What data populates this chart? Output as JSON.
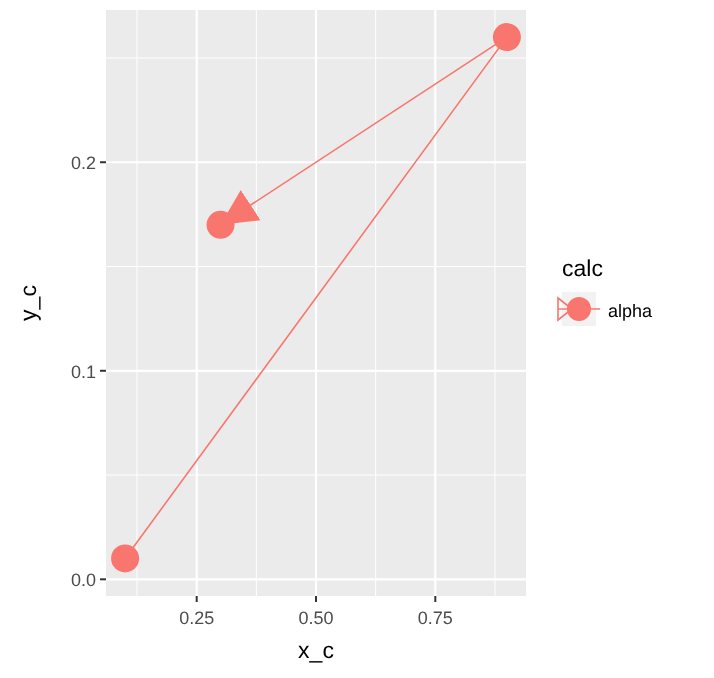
{
  "chart_data": {
    "type": "line",
    "xlabel": "x_c",
    "ylabel": "y_c",
    "legend_title": "calc",
    "legend": "right",
    "marker": "circle",
    "grid": true,
    "xlim": [
      0.06,
      0.94
    ],
    "ylim": [
      -0.008,
      0.273
    ],
    "xticks": [
      {
        "value": 0.125,
        "label": null
      },
      0.25,
      {
        "value": 0.375,
        "label": null
      },
      {
        "value": 0.5,
        "label": "0.50"
      },
      {
        "value": 0.625,
        "label": null
      },
      0.75,
      {
        "value": 0.875,
        "label": null
      }
    ],
    "yticks": [
      {
        "value": 0,
        "label": "0.0"
      },
      {
        "value": 0.05,
        "label": null
      },
      0.1,
      {
        "value": 0.15,
        "label": null
      },
      0.2,
      {
        "value": 0.25,
        "label": null
      }
    ],
    "series": [
      {
        "name": "alpha",
        "color": "#f8766d",
        "x": [
          0.1,
          0.9,
          0.3
        ],
        "values": [
          0.01,
          0.26,
          0.17
        ]
      }
    ]
  }
}
